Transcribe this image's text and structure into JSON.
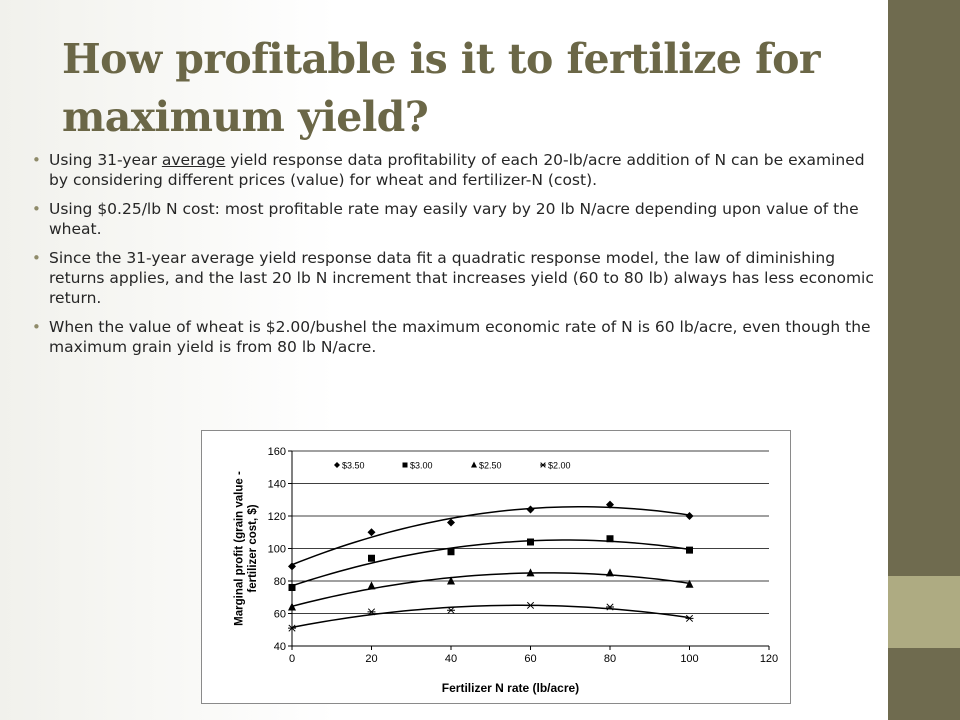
{
  "slide": {
    "title": "How profitable is it to fertilize for maximum yield?",
    "bullets": [
      {
        "pre": "Using 31-year ",
        "underlined": "average",
        "post": " yield response data profitability of each 20-lb/acre addition of N can be examined by considering different prices (value) for wheat and fertilizer-N (cost)."
      },
      {
        "pre": "Using $0.25/lb N cost: most profitable rate may easily vary by 20 lb N/acre depending upon value of the wheat.",
        "underlined": "",
        "post": ""
      },
      {
        "pre": "Since the 31-year average yield response data fit a quadratic response model, the law of diminishing returns applies, and the last 20 lb N increment that increases yield (60 to 80 lb) always has less economic return.",
        "underlined": "",
        "post": ""
      },
      {
        "pre": "When the value of wheat is $2.00/bushel the maximum economic rate of N is 60 lb/acre, even though the maximum grain yield is from 80 lb N/acre.",
        "underlined": "",
        "post": ""
      }
    ],
    "colors": {
      "title": "#6b6747",
      "side_band": "#6f6b4f",
      "side_accent": "#aeab82",
      "bullet": "#8f8b6a"
    }
  },
  "chart_data": {
    "type": "scatter",
    "title": "",
    "xlabel": "Fertilizer N rate (lb/acre)",
    "ylabel": "Marginal profit (grain value - fertilizer cost, $)",
    "xlim": [
      0,
      120
    ],
    "ylim": [
      40,
      160
    ],
    "xticks": [
      0,
      20,
      40,
      60,
      80,
      100,
      120
    ],
    "yticks": [
      40,
      60,
      80,
      100,
      120,
      140,
      160
    ],
    "grid": "horizontal",
    "legend": "top",
    "trendline": "quadratic",
    "x": [
      0,
      20,
      40,
      60,
      80,
      100
    ],
    "series": [
      {
        "name": "$3.50",
        "marker": "diamond",
        "values": [
          89,
          110,
          116,
          124,
          127,
          120
        ]
      },
      {
        "name": "$3.00",
        "marker": "square",
        "values": [
          76,
          94,
          98,
          104,
          106,
          99
        ]
      },
      {
        "name": "$2.50",
        "marker": "triangle",
        "values": [
          64,
          77,
          80,
          85,
          85,
          78
        ]
      },
      {
        "name": "$2.00",
        "marker": "asterisk",
        "values": [
          51,
          61,
          62,
          65,
          64,
          57
        ]
      }
    ]
  }
}
